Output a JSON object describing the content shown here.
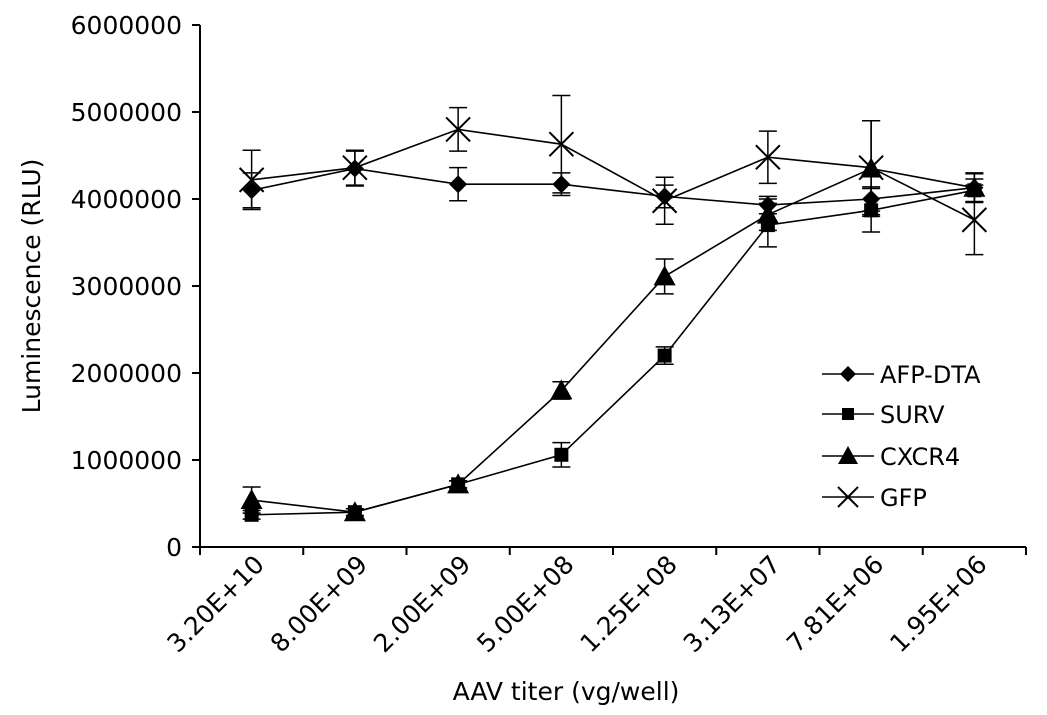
{
  "chart_data": {
    "type": "line",
    "title": "",
    "xlabel": "AAV titer (vg/well)",
    "ylabel": "Luminescence (RLU)",
    "categories": [
      "3.20E+10",
      "8.00E+09",
      "2.00E+09",
      "5.00E+08",
      "1.25E+08",
      "3.13E+07",
      "7.81E+06",
      "1.95E+06"
    ],
    "ylim": [
      0,
      6000000
    ],
    "yticks": [
      0,
      1000000,
      2000000,
      3000000,
      4000000,
      5000000,
      6000000
    ],
    "ytick_labels": [
      "0",
      "1000000",
      "2000000",
      "3000000",
      "4000000",
      "5000000",
      "6000000"
    ],
    "grid": false,
    "legend_position": "right",
    "series": [
      {
        "name": "AFP-DTA",
        "marker": "diamond",
        "values": [
          4100000,
          4350000,
          4170000,
          4170000,
          4030000,
          3930000,
          4000000,
          4130000
        ],
        "errors": [
          200000,
          200000,
          190000,
          130000,
          130000,
          100000,
          140000,
          160000
        ]
      },
      {
        "name": "SURV",
        "marker": "square",
        "values": [
          370000,
          400000,
          720000,
          1060000,
          2200000,
          3700000,
          3870000,
          4100000
        ],
        "errors": [
          50000,
          40000,
          40000,
          140000,
          100000,
          250000,
          250000,
          130000
        ]
      },
      {
        "name": "CXCR4",
        "marker": "triangle",
        "values": [
          540000,
          400000,
          720000,
          1800000,
          3110000,
          3820000,
          4350000,
          4130000
        ],
        "errors": [
          150000,
          40000,
          40000,
          100000,
          200000,
          180000,
          550000,
          170000
        ]
      },
      {
        "name": "GFP",
        "marker": "x",
        "values": [
          4220000,
          4360000,
          4800000,
          4630000,
          3980000,
          4480000,
          4360000,
          3760000
        ],
        "errors": [
          340000,
          200000,
          250000,
          560000,
          270000,
          300000,
          540000,
          400000
        ]
      }
    ]
  }
}
